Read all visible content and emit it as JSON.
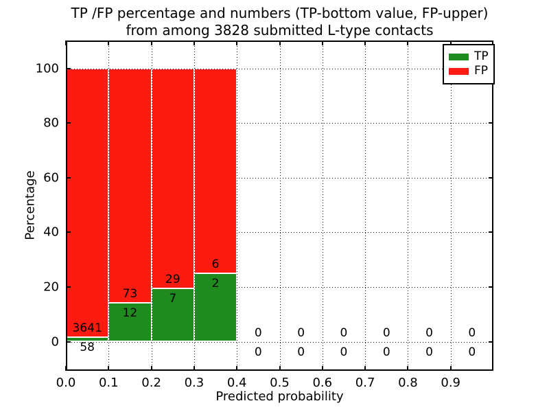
{
  "chart_data": {
    "type": "bar",
    "stacked": true,
    "title_line1": "TP /FP percentage and numbers (TP-bottom value, FP-upper)",
    "title_line2": "from among 3828 submitted L-type contacts",
    "xlabel": "Predicted probability",
    "ylabel": "Percentage",
    "legend_position": "upper right",
    "grid": "dotted",
    "xlim": [
      0.0,
      1.0
    ],
    "ylim": [
      -11,
      110
    ],
    "xticks": [
      "0.0",
      "0.1",
      "0.2",
      "0.3",
      "0.4",
      "0.5",
      "0.6",
      "0.7",
      "0.8",
      "0.9"
    ],
    "yticks": [
      0,
      20,
      40,
      60,
      80,
      100
    ],
    "bin_width": 0.1,
    "colors": {
      "tp": "#1f8b1f",
      "fp": "#fb1b10"
    },
    "legend": [
      {
        "label": "TP",
        "color": "#1f8b1f"
      },
      {
        "label": "FP",
        "color": "#fb1b10"
      }
    ],
    "bins": [
      {
        "x_start": 0.0,
        "x_end": 0.1,
        "tp_count": 58,
        "fp_count": 3641,
        "tp_pct": 1.57,
        "fp_pct": 98.43
      },
      {
        "x_start": 0.1,
        "x_end": 0.2,
        "tp_count": 12,
        "fp_count": 73,
        "tp_pct": 14.12,
        "fp_pct": 85.88
      },
      {
        "x_start": 0.2,
        "x_end": 0.3,
        "tp_count": 7,
        "fp_count": 29,
        "tp_pct": 19.44,
        "fp_pct": 80.56
      },
      {
        "x_start": 0.3,
        "x_end": 0.4,
        "tp_count": 2,
        "fp_count": 6,
        "tp_pct": 25.0,
        "fp_pct": 75.0
      },
      {
        "x_start": 0.4,
        "x_end": 0.5,
        "tp_count": 0,
        "fp_count": 0,
        "tp_pct": 0,
        "fp_pct": 0
      },
      {
        "x_start": 0.5,
        "x_end": 0.6,
        "tp_count": 0,
        "fp_count": 0,
        "tp_pct": 0,
        "fp_pct": 0
      },
      {
        "x_start": 0.6,
        "x_end": 0.7,
        "tp_count": 0,
        "fp_count": 0,
        "tp_pct": 0,
        "fp_pct": 0
      },
      {
        "x_start": 0.7,
        "x_end": 0.8,
        "tp_count": 0,
        "fp_count": 0,
        "tp_pct": 0,
        "fp_pct": 0
      },
      {
        "x_start": 0.8,
        "x_end": 0.9,
        "tp_count": 0,
        "fp_count": 0,
        "tp_pct": 0,
        "fp_pct": 0
      },
      {
        "x_start": 0.9,
        "x_end": 1.0,
        "tp_count": 0,
        "fp_count": 0,
        "tp_pct": 0,
        "fp_pct": 0
      }
    ]
  }
}
